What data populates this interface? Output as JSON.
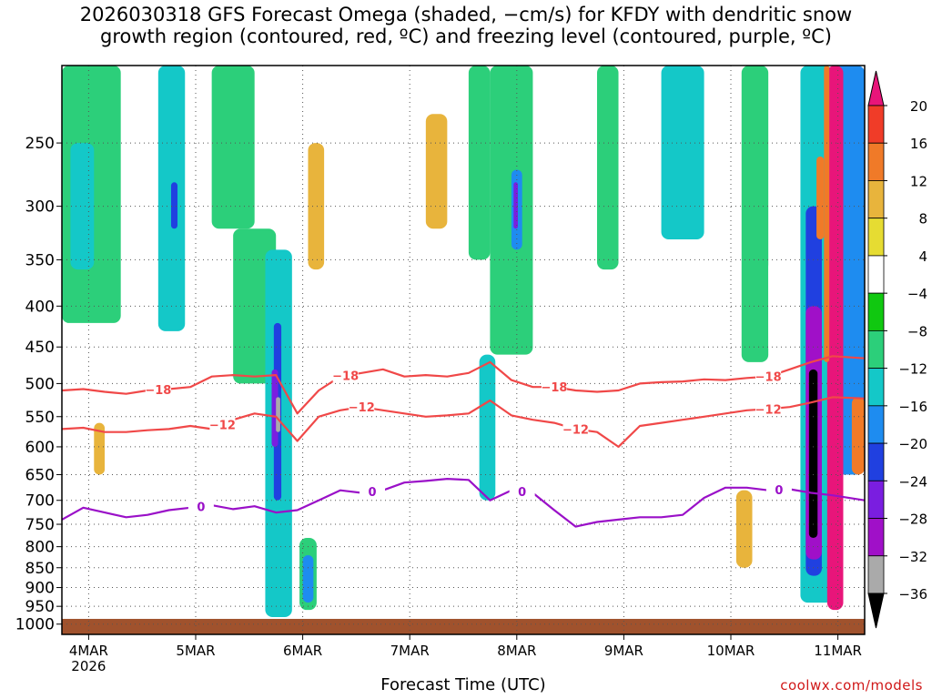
{
  "title": "2026030318 GFS Forecast Omega (shaded, −cm/s) for KFDY with dendritic snow\ngrowth region (contoured, red, ºC) and freezing level (contoured, purple, ºC)",
  "watermark": "coolwx.com/models",
  "chart_data": {
    "type": "heatmap",
    "title": "2026030318 GFS Forecast Omega (shaded, −cm/s) for KFDY with dendritic snow growth region (contoured, red, ºC) and freezing level (contoured, purple, ºC)",
    "xlabel": "Forecast Time (UTC)",
    "ylabel": "",
    "x_unit": "days since 2026-03-03 18Z",
    "xlim": [
      0,
      7.5
    ],
    "y_unit": "hPa",
    "ylim": [
      1030,
      200
    ],
    "y_scale": "log",
    "x_ticks": [
      {
        "x": 0.25,
        "label": "4MAR",
        "sublabel": "2026"
      },
      {
        "x": 1.25,
        "label": "5MAR"
      },
      {
        "x": 2.25,
        "label": "6MAR"
      },
      {
        "x": 3.25,
        "label": "7MAR"
      },
      {
        "x": 4.25,
        "label": "8MAR"
      },
      {
        "x": 5.25,
        "label": "9MAR"
      },
      {
        "x": 6.25,
        "label": "10MAR"
      },
      {
        "x": 7.25,
        "label": "11MAR"
      }
    ],
    "y_ticks": [
      250,
      300,
      350,
      400,
      450,
      500,
      550,
      600,
      650,
      700,
      750,
      800,
      850,
      900,
      950,
      1000
    ],
    "grid": true,
    "colorbar": {
      "bins": [
        {
          "min": 20,
          "max": null,
          "color": "#e8157a"
        },
        {
          "min": 16,
          "max": 20,
          "color": "#f03c28"
        },
        {
          "min": 12,
          "max": 16,
          "color": "#f07a28"
        },
        {
          "min": 8,
          "max": 12,
          "color": "#e8b43c"
        },
        {
          "min": 4,
          "max": 8,
          "color": "#e6dc32"
        },
        {
          "min": -4,
          "max": 4,
          "color": "#ffffff"
        },
        {
          "min": -8,
          "max": -4,
          "color": "#10c810"
        },
        {
          "min": -12,
          "max": -8,
          "color": "#2ccf7a"
        },
        {
          "min": -16,
          "max": -12,
          "color": "#14c8c8"
        },
        {
          "min": -20,
          "max": -16,
          "color": "#1e8cf0"
        },
        {
          "min": -24,
          "max": -20,
          "color": "#2040e0"
        },
        {
          "min": -28,
          "max": -24,
          "color": "#7a1ee0"
        },
        {
          "min": -32,
          "max": -28,
          "color": "#a010c8"
        },
        {
          "min": -36,
          "max": -32,
          "color": "#aaaaaa"
        },
        {
          "min": null,
          "max": -36,
          "color": "#000000"
        }
      ],
      "tick_labels": [
        "20",
        "16",
        "12",
        "8",
        "4",
        "−4",
        "−8",
        "−12",
        "−16",
        "−20",
        "−24",
        "−28",
        "−32",
        "−36"
      ]
    },
    "ground": {
      "color": "#a0522d",
      "top_hpa": 985
    },
    "contours": [
      {
        "name": "-18 ºC isotherm",
        "label": "−18",
        "color": "#f04848",
        "level": -18,
        "label_x": [
          0.9,
          2.65,
          4.6,
          6.6
        ],
        "x": [
          0,
          0.2,
          0.4,
          0.6,
          0.8,
          1.0,
          1.2,
          1.4,
          1.6,
          1.8,
          2.0,
          2.2,
          2.4,
          2.6,
          2.8,
          3.0,
          3.2,
          3.4,
          3.6,
          3.8,
          4.0,
          4.2,
          4.4,
          4.6,
          4.8,
          5.0,
          5.2,
          5.4,
          5.6,
          5.8,
          6.0,
          6.2,
          6.4,
          6.6,
          6.8,
          7.0,
          7.2,
          7.5
        ],
        "y": [
          510,
          508,
          512,
          515,
          510,
          508,
          505,
          490,
          488,
          490,
          488,
          545,
          510,
          490,
          485,
          480,
          490,
          488,
          490,
          485,
          470,
          495,
          505,
          505,
          510,
          512,
          510,
          500,
          498,
          497,
          494,
          495,
          492,
          490,
          480,
          470,
          462,
          465
        ]
      },
      {
        "name": "-12 ºC isotherm",
        "label": "−12",
        "color": "#f04848",
        "level": -12,
        "label_x": [
          1.5,
          2.8,
          4.8,
          6.6
        ],
        "x": [
          0,
          0.2,
          0.4,
          0.6,
          0.8,
          1.0,
          1.2,
          1.4,
          1.6,
          1.8,
          2.0,
          2.2,
          2.4,
          2.6,
          2.8,
          3.0,
          3.2,
          3.4,
          3.6,
          3.8,
          4.0,
          4.2,
          4.4,
          4.6,
          4.8,
          5.0,
          5.2,
          5.4,
          5.6,
          5.8,
          6.0,
          6.2,
          6.4,
          6.6,
          6.8,
          7.0,
          7.2,
          7.5
        ],
        "y": [
          570,
          568,
          575,
          575,
          572,
          570,
          565,
          570,
          555,
          545,
          550,
          590,
          550,
          540,
          535,
          540,
          545,
          550,
          548,
          545,
          525,
          548,
          555,
          560,
          570,
          575,
          600,
          565,
          560,
          555,
          550,
          545,
          540,
          538,
          535,
          528,
          520,
          522
        ]
      },
      {
        "name": "0 ºC freezing level",
        "label": "0",
        "color": "#9a10c8",
        "level": 0,
        "label_x": [
          1.3,
          2.9,
          4.3,
          6.7
        ],
        "x": [
          0,
          0.2,
          0.4,
          0.6,
          0.8,
          1.0,
          1.2,
          1.4,
          1.6,
          1.8,
          2.0,
          2.2,
          2.4,
          2.6,
          2.8,
          3.0,
          3.2,
          3.4,
          3.6,
          3.8,
          4.0,
          4.2,
          4.4,
          4.6,
          4.8,
          5.0,
          5.2,
          5.4,
          5.6,
          5.8,
          6.0,
          6.2,
          6.4,
          6.6,
          6.8,
          7.0,
          7.2,
          7.5
        ],
        "y": [
          740,
          715,
          725,
          735,
          730,
          720,
          715,
          710,
          718,
          712,
          725,
          720,
          700,
          680,
          685,
          680,
          665,
          662,
          658,
          660,
          700,
          680,
          685,
          720,
          755,
          745,
          740,
          735,
          735,
          730,
          695,
          675,
          675,
          680,
          678,
          685,
          690,
          700
        ]
      }
    ],
    "shading": [
      {
        "x0": 0.0,
        "x1": 0.55,
        "p0": 200,
        "p1": 420,
        "class": "-8"
      },
      {
        "x0": 0.08,
        "x1": 0.3,
        "p0": 250,
        "p1": 360,
        "class": "-12"
      },
      {
        "x0": 0.9,
        "x1": 1.15,
        "p0": 200,
        "p1": 430,
        "class": "-12"
      },
      {
        "x0": 1.02,
        "x1": 1.08,
        "p0": 280,
        "p1": 320,
        "class": "-20"
      },
      {
        "x0": 1.4,
        "x1": 1.8,
        "p0": 200,
        "p1": 320,
        "class": "-8"
      },
      {
        "x0": 1.6,
        "x1": 2.0,
        "p0": 320,
        "p1": 500,
        "class": "-8"
      },
      {
        "x0": 1.9,
        "x1": 2.15,
        "p0": 340,
        "p1": 980,
        "class": "-12"
      },
      {
        "x0": 1.98,
        "x1": 2.05,
        "p0": 420,
        "p1": 700,
        "class": "-20"
      },
      {
        "x0": 1.96,
        "x1": 2.02,
        "p0": 480,
        "p1": 600,
        "class": "-24"
      },
      {
        "x0": 2.0,
        "x1": 2.04,
        "p0": 520,
        "p1": 575,
        "class": "-32"
      },
      {
        "x0": 2.22,
        "x1": 2.38,
        "p0": 780,
        "p1": 960,
        "class": "-8"
      },
      {
        "x0": 2.25,
        "x1": 2.35,
        "p0": 820,
        "p1": 940,
        "class": "-16"
      },
      {
        "x0": 3.8,
        "x1": 4.0,
        "p0": 200,
        "p1": 350,
        "class": "-8"
      },
      {
        "x0": 4.0,
        "x1": 4.4,
        "p0": 200,
        "p1": 460,
        "class": "-8"
      },
      {
        "x0": 4.2,
        "x1": 4.3,
        "p0": 270,
        "p1": 340,
        "class": "-16"
      },
      {
        "x0": 4.22,
        "x1": 4.26,
        "p0": 280,
        "p1": 320,
        "class": "-24"
      },
      {
        "x0": 3.9,
        "x1": 4.05,
        "p0": 460,
        "p1": 700,
        "class": "-12"
      },
      {
        "x0": 5.0,
        "x1": 5.2,
        "p0": 200,
        "p1": 360,
        "class": "-8"
      },
      {
        "x0": 5.6,
        "x1": 6.0,
        "p0": 200,
        "p1": 330,
        "class": "-12"
      },
      {
        "x0": 6.35,
        "x1": 6.6,
        "p0": 200,
        "p1": 470,
        "class": "-8"
      },
      {
        "x0": 6.9,
        "x1": 7.2,
        "p0": 200,
        "p1": 940,
        "class": "-12"
      },
      {
        "x0": 6.95,
        "x1": 7.1,
        "p0": 300,
        "p1": 870,
        "class": "-20"
      },
      {
        "x0": 6.95,
        "x1": 7.1,
        "p0": 400,
        "p1": 830,
        "class": "-28"
      },
      {
        "x0": 6.98,
        "x1": 7.06,
        "p0": 480,
        "p1": 780,
        "class": "-36"
      },
      {
        "x0": 7.2,
        "x1": 7.5,
        "p0": 200,
        "p1": 650,
        "class": "-16"
      },
      {
        "x0": 7.15,
        "x1": 7.3,
        "p0": 200,
        "p1": 960,
        "class": "20"
      },
      {
        "x0": 7.12,
        "x1": 7.17,
        "p0": 200,
        "p1": 470,
        "class": "12"
      },
      {
        "x0": 7.05,
        "x1": 7.12,
        "p0": 260,
        "p1": 330,
        "class": "12"
      },
      {
        "x0": 7.38,
        "x1": 7.5,
        "p0": 520,
        "p1": 650,
        "class": "12"
      },
      {
        "x0": 0.3,
        "x1": 0.4,
        "p0": 560,
        "p1": 650,
        "class": "8"
      },
      {
        "x0": 1.0,
        "x1": 1.3,
        "p0": 560,
        "p1": 760,
        "class": "4"
      },
      {
        "x0": 2.2,
        "x1": 2.6,
        "p0": 200,
        "p1": 430,
        "class": "4"
      },
      {
        "x0": 2.3,
        "x1": 2.45,
        "p0": 250,
        "p1": 360,
        "class": "8"
      },
      {
        "x0": 3.2,
        "x1": 3.45,
        "p0": 240,
        "p1": 360,
        "class": "4"
      },
      {
        "x0": 3.4,
        "x1": 3.6,
        "p0": 230,
        "p1": 320,
        "class": "8"
      },
      {
        "x0": 4.4,
        "x1": 4.7,
        "p0": 420,
        "p1": 560,
        "class": "4"
      },
      {
        "x0": 5.2,
        "x1": 5.4,
        "p0": 240,
        "p1": 380,
        "class": "4"
      },
      {
        "x0": 5.7,
        "x1": 5.9,
        "p0": 660,
        "p1": 770,
        "class": "4"
      },
      {
        "x0": 6.3,
        "x1": 6.45,
        "p0": 680,
        "p1": 850,
        "class": "8"
      },
      {
        "x0": 6.6,
        "x1": 6.85,
        "p0": 350,
        "p1": 460,
        "class": "4"
      }
    ]
  }
}
